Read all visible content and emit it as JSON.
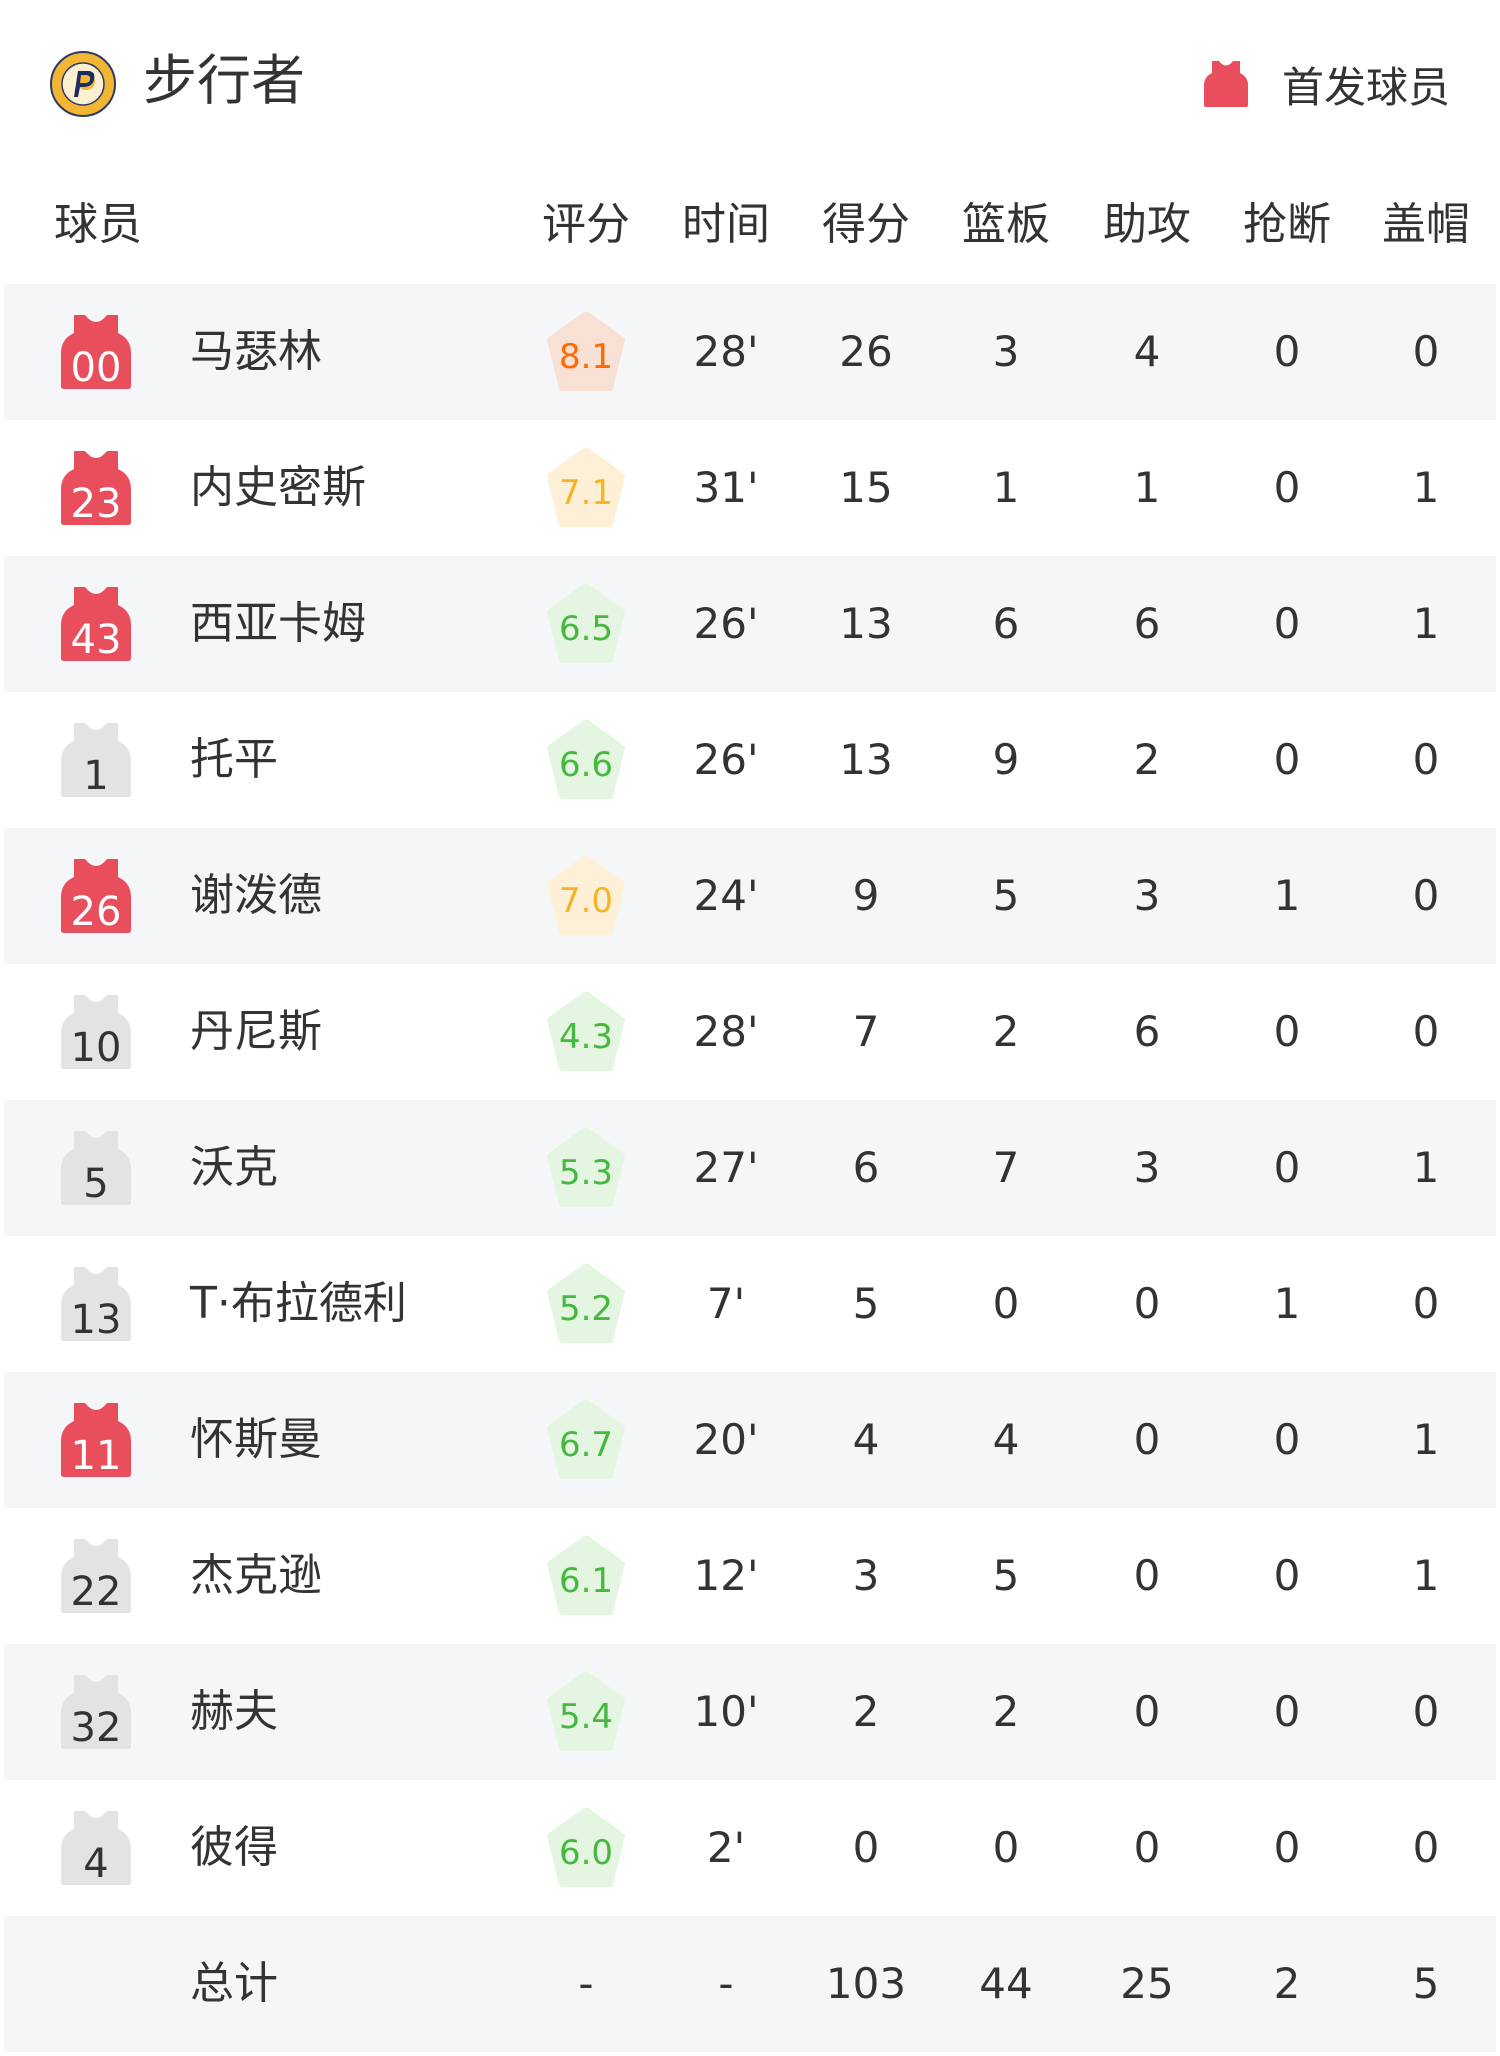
{
  "header": {
    "team_name": "步行者",
    "logo_icon": "indiana-pacers-logo",
    "legend_label": "首发球员",
    "legend_icon": "jersey-icon"
  },
  "colors": {
    "starter_jersey": "#e84e5c",
    "bench_jersey": "#e3e3e3",
    "rating_high_text": "#ff6a00",
    "rating_high_bg": "#f9e0d5",
    "rating_mid_text": "#f5b325",
    "rating_mid_bg": "#fdf0d6",
    "rating_low_text": "#46b83f",
    "rating_low_bg": "#e4f5e2"
  },
  "columns": [
    "球员",
    "评分",
    "时间",
    "得分",
    "篮板",
    "助攻",
    "抢断",
    "盖帽"
  ],
  "players": [
    {
      "number": "00",
      "starter": true,
      "name": "马瑟林",
      "rating": "8.1",
      "tier": "high",
      "time": "28'",
      "pts": "26",
      "reb": "3",
      "ast": "4",
      "stl": "0",
      "blk": "0"
    },
    {
      "number": "23",
      "starter": true,
      "name": "内史密斯",
      "rating": "7.1",
      "tier": "mid",
      "time": "31'",
      "pts": "15",
      "reb": "1",
      "ast": "1",
      "stl": "0",
      "blk": "1"
    },
    {
      "number": "43",
      "starter": true,
      "name": "西亚卡姆",
      "rating": "6.5",
      "tier": "low",
      "time": "26'",
      "pts": "13",
      "reb": "6",
      "ast": "6",
      "stl": "0",
      "blk": "1"
    },
    {
      "number": "1",
      "starter": false,
      "name": "托平",
      "rating": "6.6",
      "tier": "low",
      "time": "26'",
      "pts": "13",
      "reb": "9",
      "ast": "2",
      "stl": "0",
      "blk": "0"
    },
    {
      "number": "26",
      "starter": true,
      "name": "谢泼德",
      "rating": "7.0",
      "tier": "mid",
      "time": "24'",
      "pts": "9",
      "reb": "5",
      "ast": "3",
      "stl": "1",
      "blk": "0"
    },
    {
      "number": "10",
      "starter": false,
      "name": "丹尼斯",
      "rating": "4.3",
      "tier": "low",
      "time": "28'",
      "pts": "7",
      "reb": "2",
      "ast": "6",
      "stl": "0",
      "blk": "0"
    },
    {
      "number": "5",
      "starter": false,
      "name": "沃克",
      "rating": "5.3",
      "tier": "low",
      "time": "27'",
      "pts": "6",
      "reb": "7",
      "ast": "3",
      "stl": "0",
      "blk": "1"
    },
    {
      "number": "13",
      "starter": false,
      "name": "T·布拉德利",
      "rating": "5.2",
      "tier": "low",
      "time": "7'",
      "pts": "5",
      "reb": "0",
      "ast": "0",
      "stl": "1",
      "blk": "0"
    },
    {
      "number": "11",
      "starter": true,
      "name": "怀斯曼",
      "rating": "6.7",
      "tier": "low",
      "time": "20'",
      "pts": "4",
      "reb": "4",
      "ast": "0",
      "stl": "0",
      "blk": "1"
    },
    {
      "number": "22",
      "starter": false,
      "name": "杰克逊",
      "rating": "6.1",
      "tier": "low",
      "time": "12'",
      "pts": "3",
      "reb": "5",
      "ast": "0",
      "stl": "0",
      "blk": "1"
    },
    {
      "number": "32",
      "starter": false,
      "name": "赫夫",
      "rating": "5.4",
      "tier": "low",
      "time": "10'",
      "pts": "2",
      "reb": "2",
      "ast": "0",
      "stl": "0",
      "blk": "0"
    },
    {
      "number": "4",
      "starter": false,
      "name": "彼得",
      "rating": "6.0",
      "tier": "low",
      "time": "2'",
      "pts": "0",
      "reb": "0",
      "ast": "0",
      "stl": "0",
      "blk": "0"
    }
  ],
  "totals": {
    "label": "总计",
    "rating": "-",
    "time": "-",
    "pts": "103",
    "reb": "44",
    "ast": "25",
    "stl": "2",
    "blk": "5"
  }
}
